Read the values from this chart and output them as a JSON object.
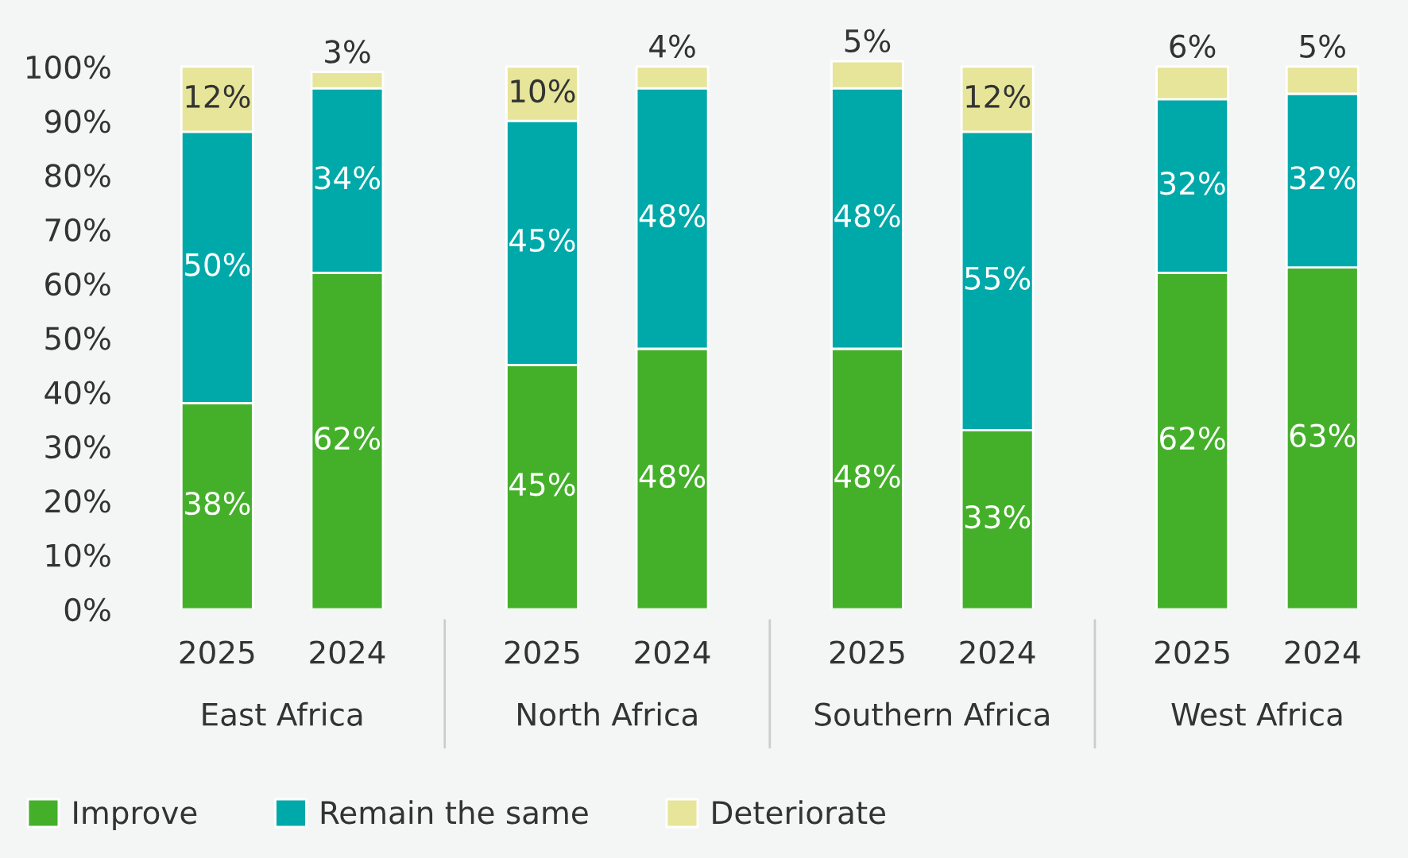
{
  "chart_data": {
    "type": "bar",
    "stacked": true,
    "categories": [
      "2025",
      "2024",
      "2025",
      "2024",
      "2025",
      "2024",
      "2025",
      "2024"
    ],
    "annotations": [
      "East Africa",
      "North Africa",
      "Southern Africa",
      "West Africa"
    ],
    "series": [
      {
        "name": "Improve",
        "color": "#44b02a",
        "values": [
          38,
          62,
          45,
          48,
          48,
          33,
          62,
          63
        ],
        "value_labels": [
          "38%",
          "62%",
          "45%",
          "48%",
          "48%",
          "33%",
          "62%",
          "63%"
        ]
      },
      {
        "name": "Remain the same",
        "color": "#00a9a9",
        "values": [
          50,
          34,
          45,
          48,
          48,
          55,
          32,
          32
        ],
        "value_labels": [
          "50%",
          "34%",
          "45%",
          "48%",
          "48%",
          "55%",
          "32%",
          "32%"
        ]
      },
      {
        "name": "Deteriorate",
        "color": "#e6e59a",
        "values": [
          12,
          3,
          10,
          4,
          5,
          12,
          6,
          5
        ],
        "value_labels": [
          "12%",
          "3%",
          "10%",
          "4%",
          "5%",
          "12%",
          "6%",
          "5%"
        ]
      }
    ],
    "ylim": [
      0,
      102
    ],
    "yticks": [
      {
        "value": 0,
        "label": "0%"
      },
      {
        "value": 10,
        "label": "10%"
      },
      {
        "value": 20,
        "label": "20%"
      },
      {
        "value": 30,
        "label": "30%"
      },
      {
        "value": 40,
        "label": "40%"
      },
      {
        "value": 50,
        "label": "50%"
      },
      {
        "value": 60,
        "label": "60%"
      },
      {
        "value": 70,
        "label": "70%"
      },
      {
        "value": 80,
        "label": "80%"
      },
      {
        "value": 90,
        "label": "90%"
      },
      {
        "value": 100,
        "label": "100%"
      }
    ],
    "grid": false,
    "legend": "bottom left"
  }
}
